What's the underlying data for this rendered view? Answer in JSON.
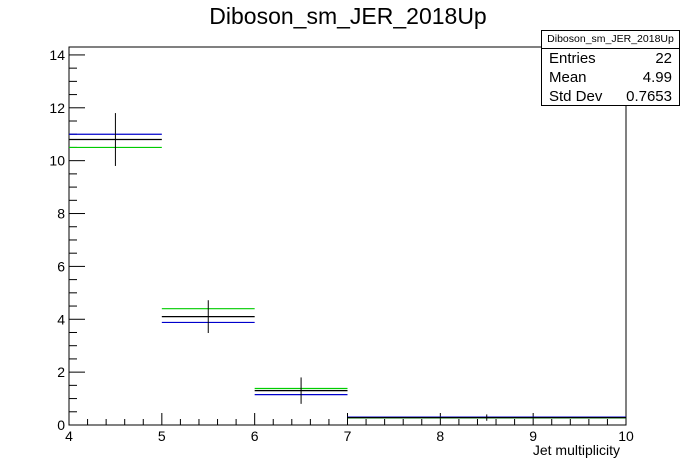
{
  "chart_data": {
    "type": "histogram",
    "title": "Diboson_sm_JER_2018Up",
    "xlabel": "Jet multiplicity",
    "ylabel": "",
    "xlim": [
      4,
      10
    ],
    "ylim": [
      0,
      14.3
    ],
    "x_ticks": [
      "4",
      "5",
      "6",
      "7",
      "8",
      "9",
      "10"
    ],
    "y_ticks": [
      "0",
      "2",
      "4",
      "6",
      "8",
      "10",
      "12",
      "14"
    ],
    "series": [
      {
        "color": "#000000",
        "bins": [
          {
            "x0": 4,
            "x1": 5,
            "y": 10.8,
            "err": 1.0
          },
          {
            "x0": 5,
            "x1": 6,
            "y": 4.1,
            "err": 0.62
          },
          {
            "x0": 6,
            "x1": 7,
            "y": 1.3,
            "err": 0.5
          },
          {
            "x0": 7,
            "x1": 10,
            "y": 0.28,
            "err": 0.12
          }
        ]
      },
      {
        "color": "#00cc00",
        "bins": [
          {
            "x0": 4,
            "x1": 5,
            "y": 10.5
          },
          {
            "x0": 5,
            "x1": 6,
            "y": 4.4
          },
          {
            "x0": 6,
            "x1": 7,
            "y": 1.38
          },
          {
            "x0": 7,
            "x1": 10,
            "y": 0.27
          }
        ]
      },
      {
        "color": "#0000cc",
        "bins": [
          {
            "x0": 4,
            "x1": 5,
            "y": 11.0
          },
          {
            "x0": 5,
            "x1": 6,
            "y": 3.88
          },
          {
            "x0": 6,
            "x1": 7,
            "y": 1.15
          },
          {
            "x0": 7,
            "x1": 10,
            "y": 0.3
          }
        ]
      }
    ],
    "stats": {
      "name": "Diboson_sm_JER_2018Up",
      "rows": [
        {
          "label": "Entries",
          "value": "22"
        },
        {
          "label": "Mean",
          "value": "4.99"
        },
        {
          "label": "Std Dev",
          "value": "0.7653"
        }
      ]
    }
  }
}
